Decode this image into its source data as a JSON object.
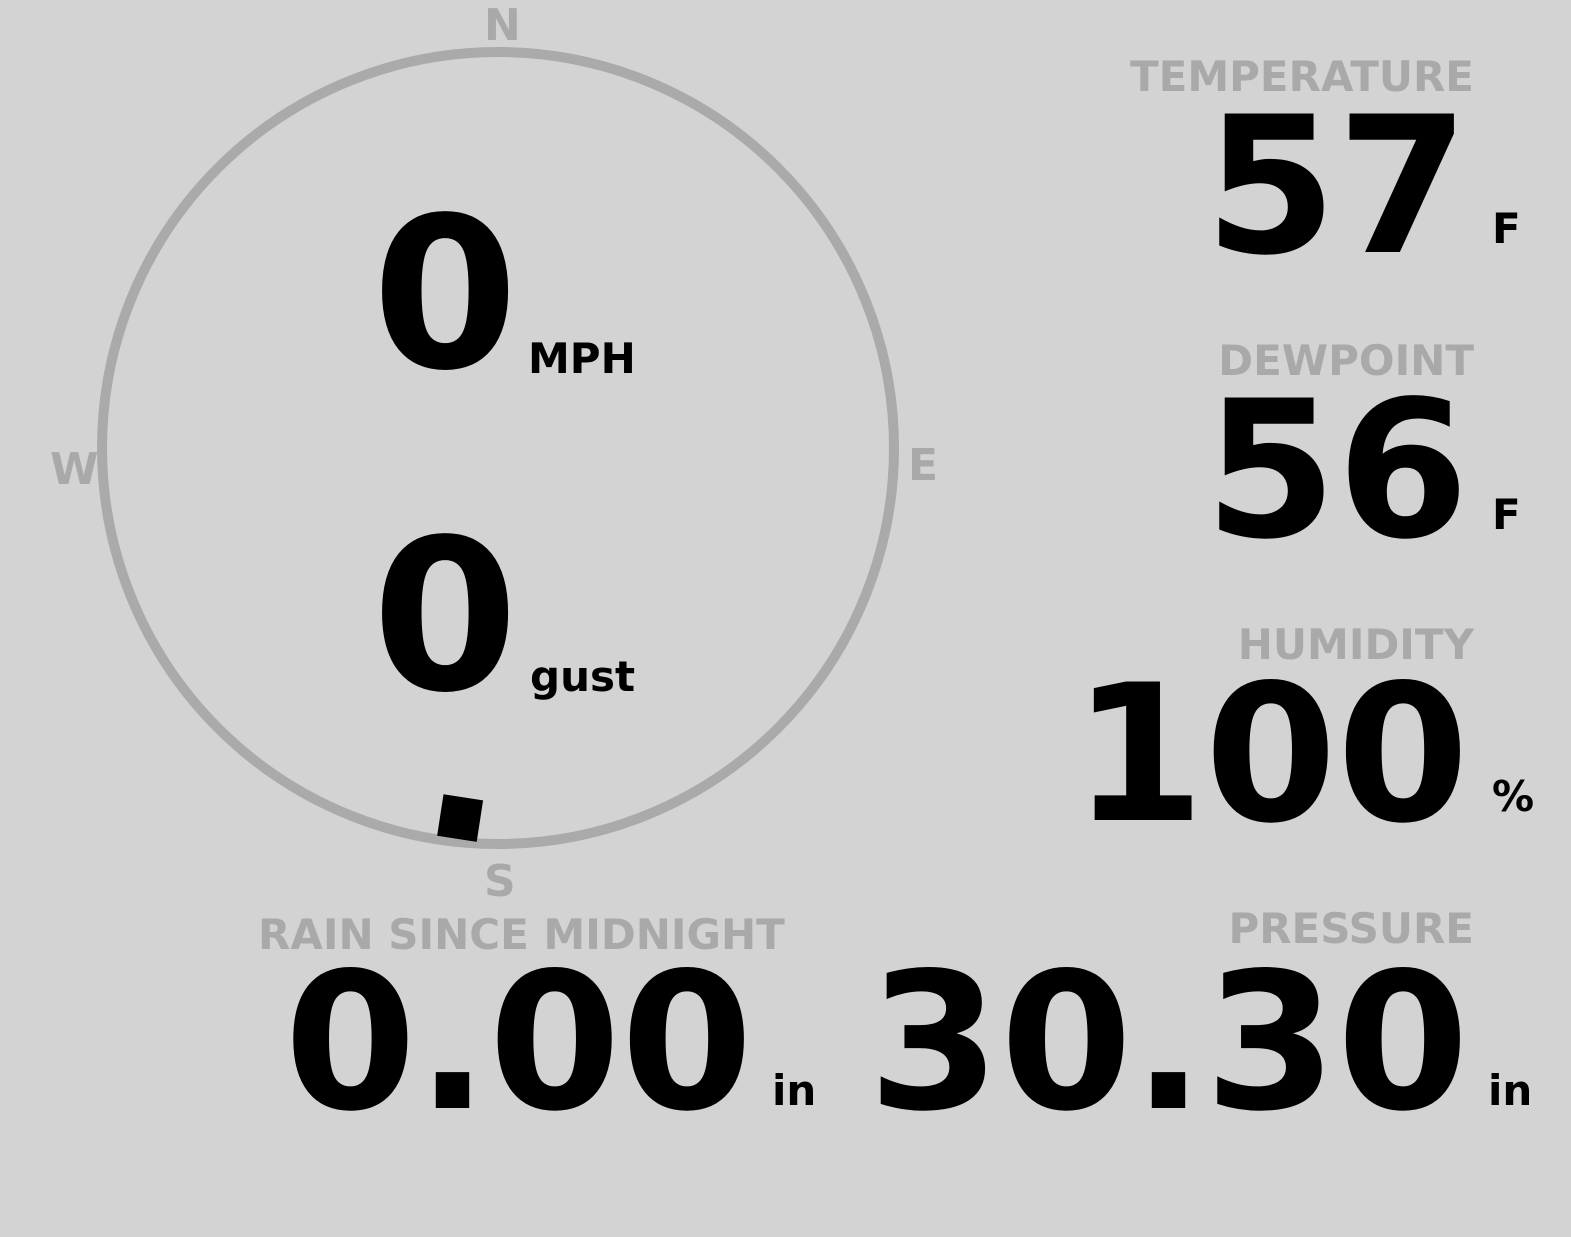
{
  "wind": {
    "speed": "0",
    "speed_unit": "MPH",
    "gust": "0",
    "gust_unit": "gust",
    "direction_degrees": 186,
    "cardinals": {
      "n": "N",
      "e": "E",
      "s": "S",
      "w": "W"
    }
  },
  "temperature": {
    "label": "TEMPERATURE",
    "value": "57",
    "unit": "F"
  },
  "dewpoint": {
    "label": "DEWPOINT",
    "value": "56",
    "unit": "F"
  },
  "humidity": {
    "label": "HUMIDITY",
    "value": "100",
    "unit": "%"
  },
  "rain": {
    "label": "RAIN SINCE MIDNIGHT",
    "value": "0.00",
    "unit": "in"
  },
  "pressure": {
    "label": "PRESSURE",
    "value": "30.30",
    "unit": "in"
  },
  "colors": {
    "background": "#d3d3d3",
    "label": "#a9a9a9",
    "value": "#000000"
  }
}
